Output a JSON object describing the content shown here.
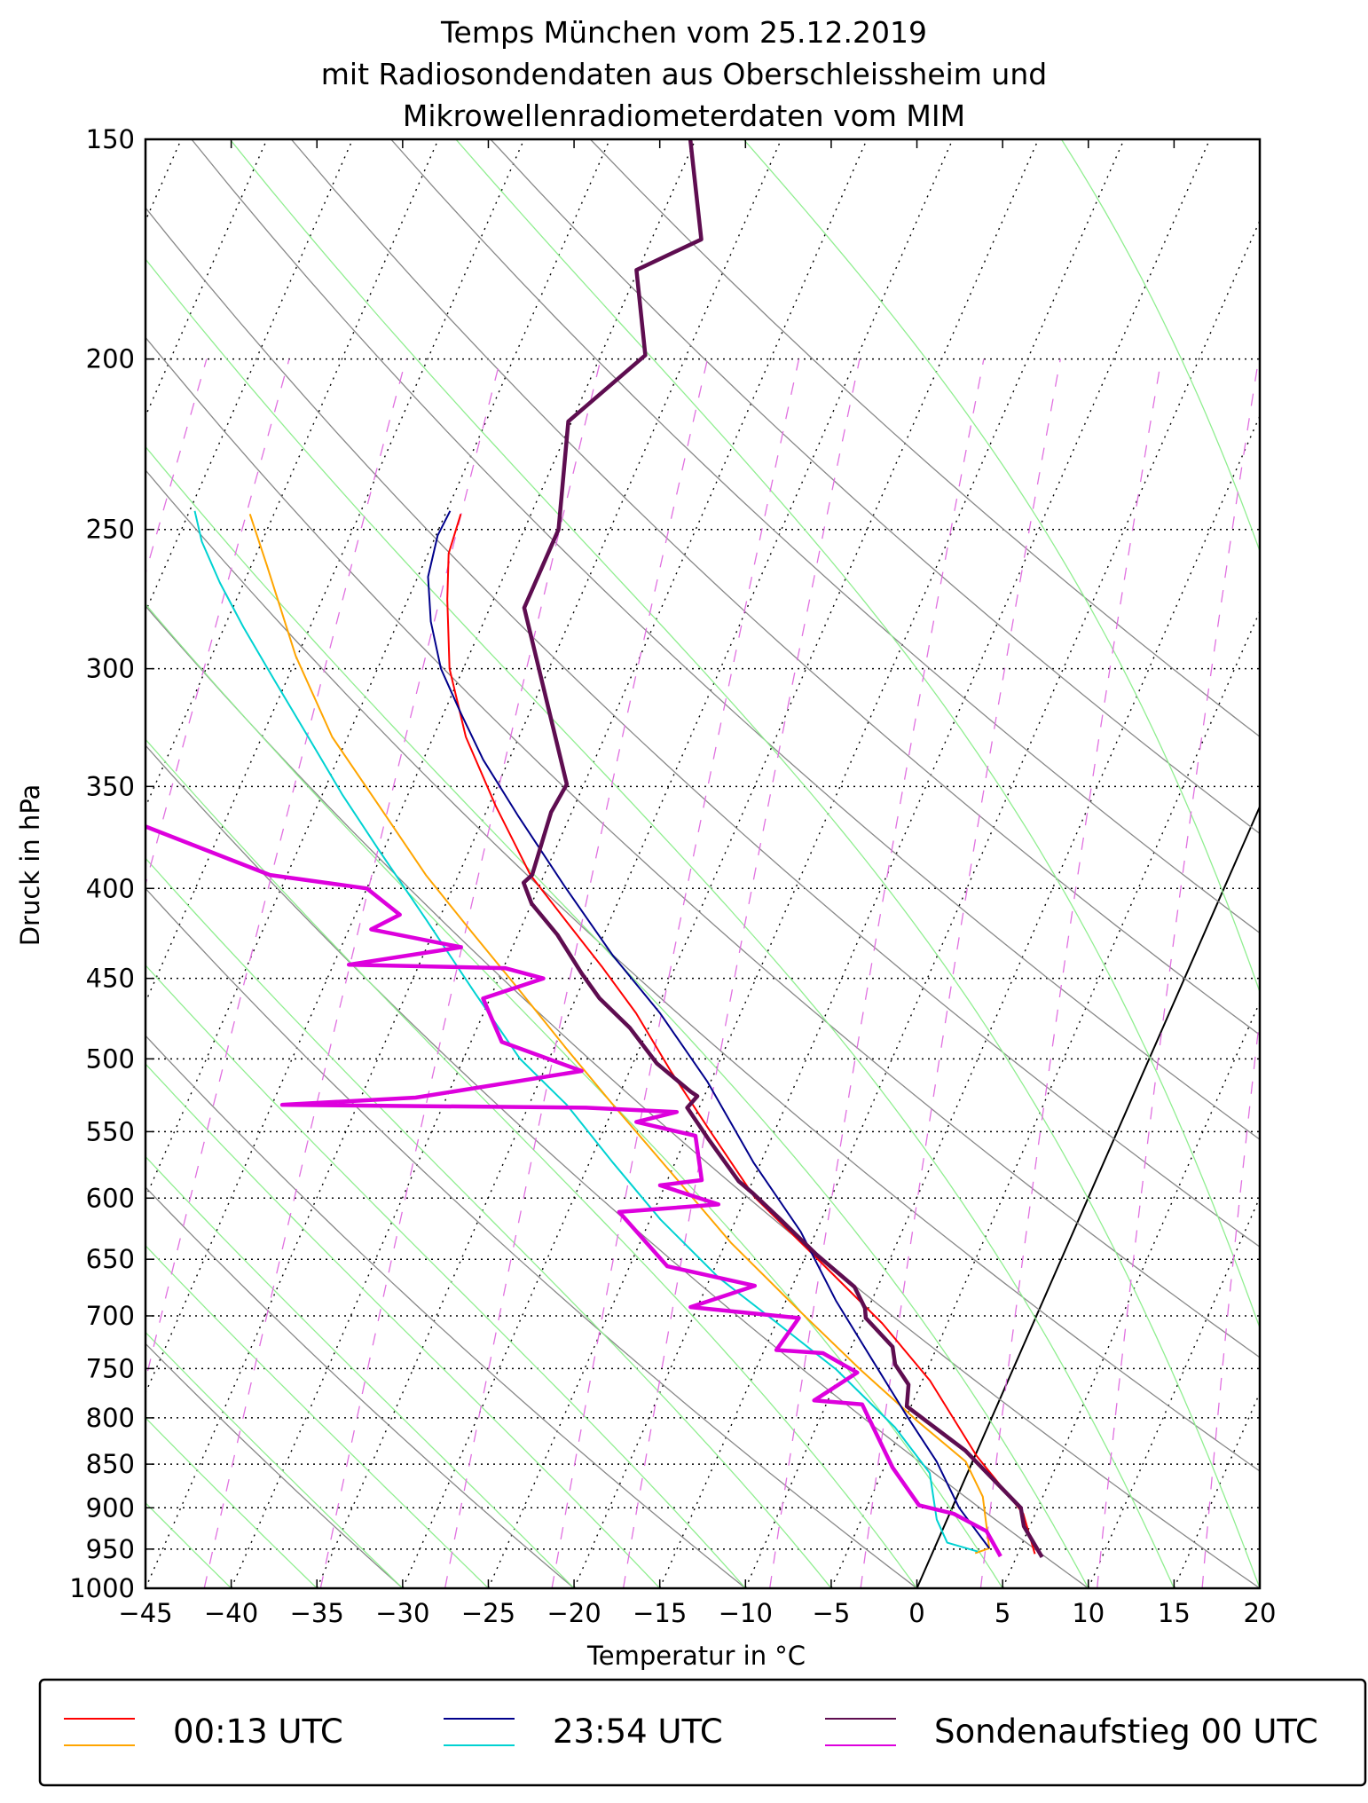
{
  "chart_data": {
    "type": "line",
    "subtype": "skew-T log-p diagram",
    "title": [
      "Temps München vom 25.12.2019",
      "mit Radiosondendaten aus Oberschleissheim und",
      "Mikrowellenradiometerdaten vom MIM"
    ],
    "xlabel": "Temperatur in °C",
    "ylabel": "Druck in hPa",
    "xlim": [
      -45,
      20
    ],
    "ylim": [
      1000,
      150
    ],
    "yscale": "log",
    "xticks": [
      "−45",
      "−40",
      "−35",
      "−30",
      "−25",
      "−20",
      "−15",
      "−10",
      "−5",
      "0",
      "5",
      "10",
      "15",
      "20"
    ],
    "xtick_values": [
      -45,
      -40,
      -35,
      -30,
      -25,
      -20,
      -15,
      -10,
      -5,
      0,
      5,
      10,
      15,
      20
    ],
    "yticks": [
      "150",
      "200",
      "250",
      "300",
      "350",
      "400",
      "450",
      "500",
      "550",
      "600",
      "650",
      "700",
      "750",
      "800",
      "850",
      "900",
      "950",
      "1000"
    ],
    "ytick_values": [
      150,
      200,
      250,
      300,
      350,
      400,
      450,
      500,
      550,
      600,
      650,
      700,
      750,
      800,
      850,
      900,
      950,
      1000
    ],
    "grid": true,
    "background_lines": {
      "isotherms_step": 5,
      "dry_adiabats_theta_c": [
        -30,
        -20,
        -10,
        0,
        10,
        20,
        30,
        40,
        50,
        60,
        70,
        80,
        90,
        100
      ],
      "moist_adiabats_start_c": [
        -45,
        -40,
        -35,
        -30,
        -25,
        -20,
        -15,
        -10,
        -5,
        0,
        5,
        10,
        15,
        20,
        25,
        30,
        35
      ],
      "mixing_ratios_gkg": [
        0.01,
        0.02,
        0.05,
        0.1,
        0.2,
        0.4,
        0.7,
        1,
        2,
        3,
        5,
        8,
        12,
        16,
        20,
        24,
        28
      ]
    },
    "series": [
      {
        "name": "00:13 UTC Temperatur",
        "legend_group": 0,
        "color": "#ff0000",
        "width": 2,
        "points": [
          [
            245,
            -54.1
          ],
          [
            258,
            -53.8
          ],
          [
            274,
            -52.7
          ],
          [
            300,
            -50.8
          ],
          [
            328,
            -48.1
          ],
          [
            359,
            -44.6
          ],
          [
            393,
            -40.8
          ],
          [
            417,
            -37.6
          ],
          [
            443,
            -34.3
          ],
          [
            471,
            -31.1
          ],
          [
            508,
            -27.6
          ],
          [
            547,
            -24.0
          ],
          [
            599,
            -19.5
          ],
          [
            646,
            -14.6
          ],
          [
            707,
            -8.8
          ],
          [
            762,
            -4.55
          ],
          [
            841,
            0.1
          ],
          [
            907,
            4.3
          ],
          [
            956,
            6.0
          ]
        ]
      },
      {
        "name": "00:13 UTC Taupunkt",
        "legend_group": 0,
        "color": "#ffa500",
        "width": 2,
        "points": [
          [
            245,
            -66.4
          ],
          [
            262,
            -64.1
          ],
          [
            295,
            -60.1
          ],
          [
            328,
            -55.9
          ],
          [
            359,
            -51.4
          ],
          [
            393,
            -46.9
          ],
          [
            424,
            -42.7
          ],
          [
            457,
            -38.5
          ],
          [
            493,
            -34.3
          ],
          [
            531,
            -30.1
          ],
          [
            581,
            -24.9
          ],
          [
            636,
            -19.7
          ],
          [
            697,
            -13.8
          ],
          [
            751,
            -8.9
          ],
          [
            804,
            -4.2
          ],
          [
            847,
            -0.4
          ],
          [
            887,
            1.5
          ],
          [
            949,
            3.2
          ],
          [
            955,
            2.5
          ]
        ]
      },
      {
        "name": "23:54 UTC Temperatur",
        "legend_group": 1,
        "color": "#00008b",
        "width": 2,
        "points": [
          [
            244,
            -54.8
          ],
          [
            252,
            -54.9
          ],
          [
            266,
            -54.4
          ],
          [
            282,
            -53.1
          ],
          [
            300,
            -51.3
          ],
          [
            318,
            -49.0
          ],
          [
            338,
            -46.5
          ],
          [
            364,
            -43.0
          ],
          [
            399,
            -38.5
          ],
          [
            437,
            -33.9
          ],
          [
            471,
            -29.7
          ],
          [
            515,
            -25.2
          ],
          [
            573,
            -20.4
          ],
          [
            627,
            -15.9
          ],
          [
            686,
            -12.1
          ],
          [
            740,
            -8.55
          ],
          [
            798,
            -5.0
          ],
          [
            847,
            -2.1
          ],
          [
            900,
            0.4
          ],
          [
            949,
            3.2
          ]
        ]
      },
      {
        "name": "23:54 UTC Taupunkt",
        "legend_group": 1,
        "color": "#00d2d2",
        "width": 2,
        "points": [
          [
            244,
            -69.7
          ],
          [
            254,
            -68.5
          ],
          [
            268,
            -66.4
          ],
          [
            284,
            -63.9
          ],
          [
            304,
            -60.8
          ],
          [
            328,
            -57.3
          ],
          [
            354,
            -53.8
          ],
          [
            381,
            -50.2
          ],
          [
            417,
            -45.7
          ],
          [
            457,
            -41.2
          ],
          [
            500,
            -36.7
          ],
          [
            531,
            -32.8
          ],
          [
            573,
            -28.6
          ],
          [
            617,
            -24.4
          ],
          [
            666,
            -19.5
          ],
          [
            707,
            -14.9
          ],
          [
            751,
            -10.3
          ],
          [
            810,
            -5.4
          ],
          [
            860,
            -2.2
          ],
          [
            914,
            -0.6
          ],
          [
            942,
            0.6
          ],
          [
            953,
            2.6
          ]
        ]
      },
      {
        "name": "Sondenaufstieg 00 UTC Temperatur",
        "legend_group": 2,
        "color": "#5e0d50",
        "width": 4.5,
        "points": [
          [
            150,
            -50.3
          ],
          [
            171,
            -47.1
          ],
          [
            178,
            -50.1
          ],
          [
            199,
            -47.4
          ],
          [
            217,
            -50.2
          ],
          [
            250,
            -48.0
          ],
          [
            277,
            -48.0
          ],
          [
            349,
            -41.0
          ],
          [
            362,
            -41.2
          ],
          [
            393,
            -40.7
          ],
          [
            397,
            -41.0
          ],
          [
            408,
            -40.0
          ],
          [
            425,
            -37.7
          ],
          [
            447,
            -35.3
          ],
          [
            462,
            -33.6
          ],
          [
            480,
            -31.1
          ],
          [
            503,
            -28.6
          ],
          [
            522,
            -25.9
          ],
          [
            525,
            -25.4
          ],
          [
            533,
            -25.7
          ],
          [
            556,
            -23.6
          ],
          [
            587,
            -20.8
          ],
          [
            596,
            -19.7
          ],
          [
            617,
            -17.4
          ],
          [
            646,
            -14.4
          ],
          [
            674,
            -11.35
          ],
          [
            693,
            -10.2
          ],
          [
            702,
            -9.9
          ],
          [
            729,
            -7.6
          ],
          [
            746,
            -7.0
          ],
          [
            766,
            -5.7
          ],
          [
            788,
            -5.25
          ],
          [
            835,
            -0.7
          ],
          [
            900,
            4.0
          ],
          [
            922,
            4.65
          ],
          [
            960,
            6.5
          ]
        ]
      },
      {
        "name": "Sondenaufstieg 00 UTC Taupunkt",
        "legend_group": 2,
        "color": "#dd00dd",
        "width": 4.5,
        "points": [
          [
            368,
            -64.8
          ],
          [
            393,
            -56.0
          ],
          [
            400,
            -50.0
          ],
          [
            414,
            -47.4
          ],
          [
            422,
            -48.7
          ],
          [
            432,
            -43.0
          ],
          [
            442,
            -49.1
          ],
          [
            444,
            -39.9
          ],
          [
            450,
            -37.4
          ],
          [
            462,
            -40.4
          ],
          [
            489,
            -38.2
          ],
          [
            508,
            -32.8
          ],
          [
            526,
            -41.8
          ],
          [
            531,
            -49.4
          ],
          [
            533,
            -31.6
          ],
          [
            536,
            -26.2
          ],
          [
            543,
            -28.3
          ],
          [
            553,
            -24.5
          ],
          [
            586,
            -23.0
          ],
          [
            590,
            -25.3
          ],
          [
            605,
            -21.4
          ],
          [
            611,
            -27.0
          ],
          [
            656,
            -22.8
          ],
          [
            673,
            -17.2
          ],
          [
            692,
            -20.4
          ],
          [
            702,
            -13.8
          ],
          [
            732,
            -14.3
          ],
          [
            735,
            -11.5
          ],
          [
            754,
            -9.0
          ],
          [
            782,
            -10.8
          ],
          [
            786,
            -7.9
          ],
          [
            854,
            -4.5
          ],
          [
            897,
            -2.0
          ],
          [
            907,
            0.24
          ],
          [
            928,
            2.6
          ],
          [
            959,
            4.06
          ]
        ]
      }
    ],
    "legend": {
      "placement": "bottom",
      "entries": [
        {
          "label": "00:13 UTC",
          "colors": [
            "#ff0000",
            "#ffa500"
          ]
        },
        {
          "label": "23:54 UTC",
          "colors": [
            "#00008b",
            "#00d2d2"
          ]
        },
        {
          "label": "Sondenaufstieg 00 UTC",
          "colors": [
            "#5e0d50",
            "#dd00dd"
          ]
        }
      ]
    }
  }
}
